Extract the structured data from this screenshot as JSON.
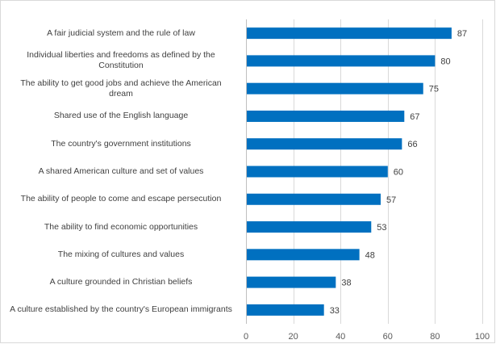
{
  "chart_data": {
    "type": "bar",
    "orientation": "horizontal",
    "categories": [
      "A fair judicial system and the rule of law",
      "Individual liberties and freedoms as defined by the Constitution",
      "The ability to get good jobs and achieve the American dream",
      "Shared use of the English language",
      "The country's government institutions",
      "A shared American culture and set of values",
      "The ability of people to come and escape persecution",
      "The ability to find economic opportunities",
      "The mixing of cultures and values",
      "A culture grounded in Christian beliefs",
      "A culture established by the country's European immigrants"
    ],
    "category_lines": [
      [
        "A fair judicial system and the rule of law"
      ],
      [
        "Individual liberties and freedoms as defined by the",
        "Constitution"
      ],
      [
        "The ability to get good jobs and achieve the American",
        "dream"
      ],
      [
        "Shared use of the English language"
      ],
      [
        "The country's government institutions"
      ],
      [
        "A shared American culture and set of values"
      ],
      [
        "The ability of people to come and escape persecution"
      ],
      [
        "The ability to find economic opportunities"
      ],
      [
        "The mixing of cultures and values"
      ],
      [
        "A culture grounded in Christian beliefs"
      ],
      [
        "A culture established by the country's European immigrants"
      ]
    ],
    "values": [
      87,
      80,
      75,
      67,
      66,
      60,
      57,
      53,
      48,
      38,
      33
    ],
    "xlim": [
      0,
      100
    ],
    "xticks": [
      0,
      20,
      40,
      60,
      80,
      100
    ],
    "title": "",
    "xlabel": "",
    "ylabel": "",
    "grid": true,
    "legend": "none",
    "data_labels": true,
    "bar_color": "#0070c0"
  }
}
